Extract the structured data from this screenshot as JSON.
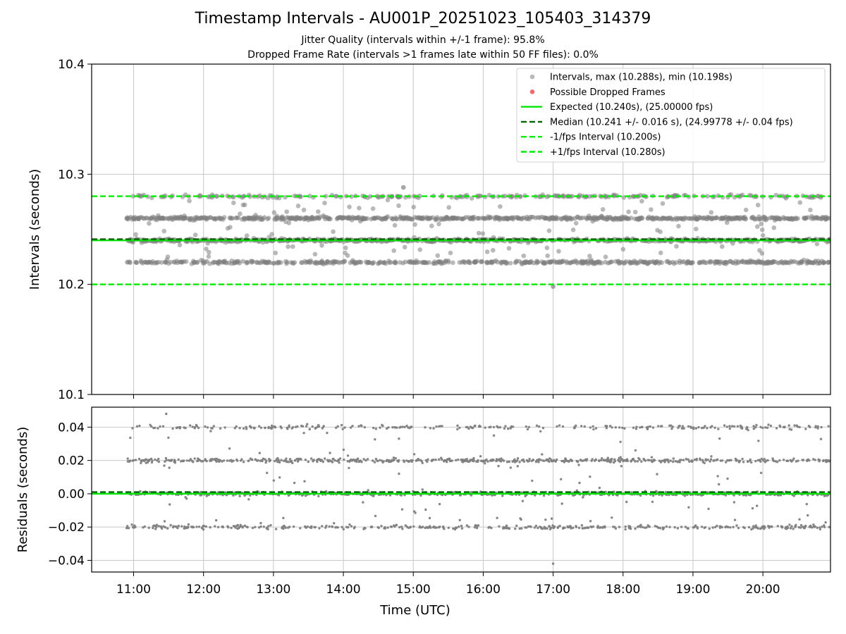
{
  "title": "Timestamp Intervals - AU001P_20251023_105403_314379",
  "subtitle_jitter": "Jitter Quality (intervals within +/-1 frame): 95.8%",
  "subtitle_dropped": "Dropped Frame Rate (intervals >1 frames late within 50 FF files): 0.0%",
  "colors": {
    "points": "#808080",
    "dropped": "#e8474f",
    "expected": "#00e600",
    "median": "#006400",
    "bounds": "#00ee00",
    "grid": "#c8c8c8"
  },
  "chart_data": [
    {
      "type": "scatter",
      "id": "intervals",
      "ylabel": "Intervals (seconds)",
      "x_range": [
        "10:24",
        "20:58"
      ],
      "ylim": [
        10.1,
        10.4
      ],
      "yticks": [
        "10.1",
        "10.2",
        "10.3",
        "10.4"
      ],
      "grid": true,
      "legend_position": "top-right",
      "series": [
        {
          "name": "Intervals, max (10.288s), min (10.198s)",
          "kind": "points",
          "levels": [
            10.22,
            10.24,
            10.26,
            10.28
          ],
          "max": 10.288,
          "min": 10.198,
          "x_start": "10:54",
          "x_end": "20:58"
        },
        {
          "name": "Possible Dropped Frames",
          "kind": "points",
          "values": []
        }
      ],
      "reference_lines": [
        {
          "name": "Expected (10.240s), (25.00000 fps)",
          "y": 10.24,
          "style": "solid",
          "color": "#00e600"
        },
        {
          "name": "Median (10.241 +/- 0.016 s), (24.99778 +/- 0.04 fps)",
          "y": 10.241,
          "style": "dashed",
          "color": "#006400"
        },
        {
          "name": "-1/fps Interval (10.200s)",
          "y": 10.2,
          "style": "dashed",
          "color": "#00ee00"
        },
        {
          "name": "+1/fps Interval (10.280s)",
          "y": 10.28,
          "style": "dashed",
          "color": "#00ee00"
        }
      ]
    },
    {
      "type": "scatter",
      "id": "residuals",
      "ylabel": "Residuals (seconds)",
      "xlabel": "Time (UTC)",
      "x_range": [
        "10:24",
        "20:58"
      ],
      "xticks": [
        "11:00",
        "12:00",
        "13:00",
        "14:00",
        "15:00",
        "16:00",
        "17:00",
        "18:00",
        "19:00",
        "20:00"
      ],
      "ylim": [
        -0.047,
        0.052
      ],
      "yticks": [
        "0.04",
        "0.02",
        "0.00",
        "−0.02",
        "−0.04"
      ],
      "grid": true,
      "series": [
        {
          "name": "Residuals",
          "kind": "points",
          "levels": [
            -0.02,
            0.0,
            0.02,
            0.04
          ],
          "max": 0.048,
          "min": -0.042
        }
      ],
      "reference_lines": [
        {
          "name": "Expected",
          "y": 0.0,
          "style": "solid",
          "color": "#00e600"
        },
        {
          "name": "Median",
          "y": 0.001,
          "style": "dashed",
          "color": "#006400"
        }
      ]
    }
  ]
}
